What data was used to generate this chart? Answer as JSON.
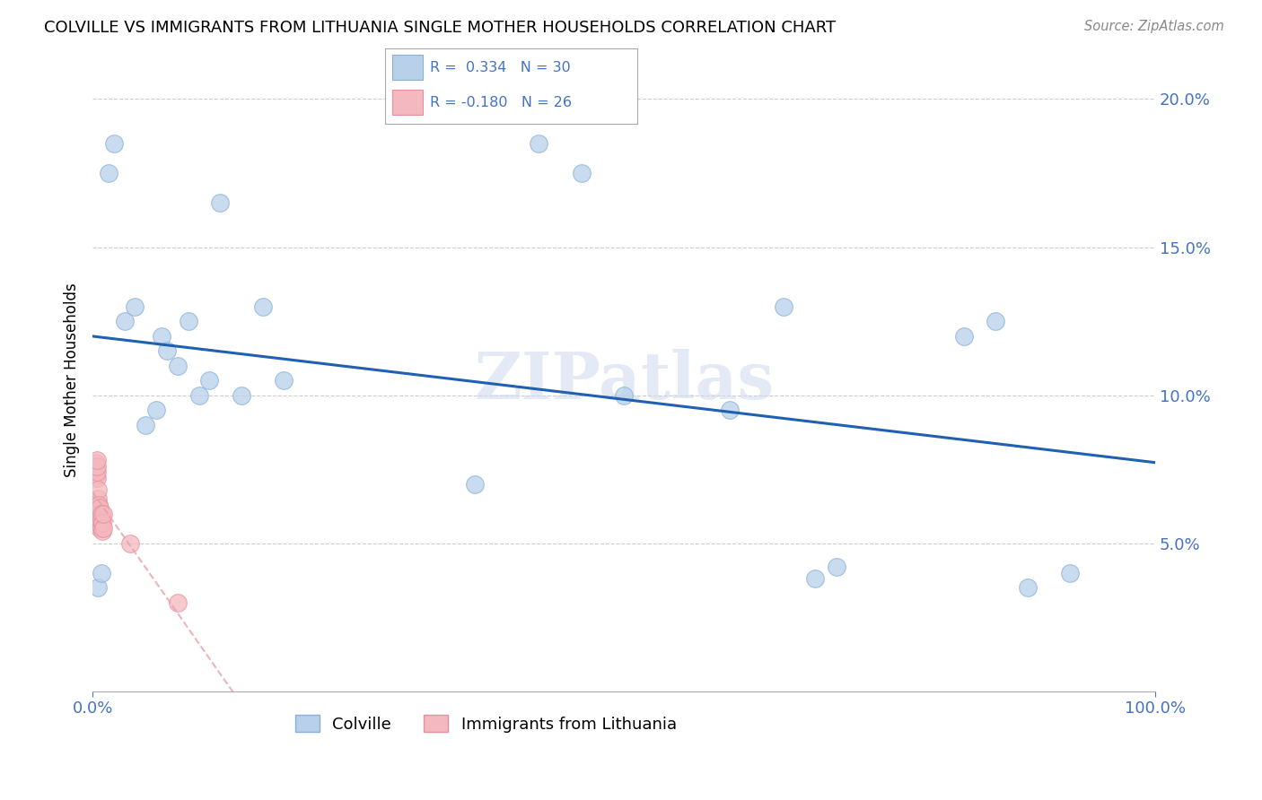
{
  "title": "COLVILLE VS IMMIGRANTS FROM LITHUANIA SINGLE MOTHER HOUSEHOLDS CORRELATION CHART",
  "source": "Source: ZipAtlas.com",
  "tick_color": "#4472c4",
  "ylabel": "Single Mother Households",
  "xlim": [
    0,
    1.0
  ],
  "ylim": [
    0,
    0.21
  ],
  "y_ticks": [
    0.0,
    0.05,
    0.1,
    0.15,
    0.2
  ],
  "y_tick_labels": [
    "",
    "5.0%",
    "10.0%",
    "15.0%",
    "20.0%"
  ],
  "colville_color": "#b8d0ea",
  "colville_edge": "#88afd8",
  "lithuania_color": "#f4b8c0",
  "lithuania_edge": "#e8909a",
  "line_blue": "#2060b0",
  "line_pink": "#e8a0aa",
  "colville_points_x": [
    0.005,
    0.008,
    0.015,
    0.02,
    0.03,
    0.04,
    0.05,
    0.06,
    0.065,
    0.07,
    0.08,
    0.09,
    0.1,
    0.11,
    0.12,
    0.14,
    0.16,
    0.18,
    0.36,
    0.42,
    0.46,
    0.5,
    0.6,
    0.65,
    0.68,
    0.7,
    0.82,
    0.85,
    0.88,
    0.92
  ],
  "colville_points_y": [
    0.035,
    0.04,
    0.175,
    0.185,
    0.125,
    0.13,
    0.09,
    0.095,
    0.12,
    0.115,
    0.11,
    0.125,
    0.1,
    0.105,
    0.165,
    0.1,
    0.13,
    0.105,
    0.07,
    0.185,
    0.175,
    0.1,
    0.095,
    0.13,
    0.038,
    0.042,
    0.12,
    0.125,
    0.035,
    0.04
  ],
  "lithuania_points_x": [
    0.003,
    0.003,
    0.003,
    0.004,
    0.004,
    0.004,
    0.004,
    0.005,
    0.005,
    0.005,
    0.005,
    0.006,
    0.006,
    0.006,
    0.007,
    0.007,
    0.007,
    0.008,
    0.008,
    0.008,
    0.009,
    0.009,
    0.01,
    0.01,
    0.035,
    0.08
  ],
  "lithuania_points_y": [
    0.073,
    0.075,
    0.077,
    0.072,
    0.074,
    0.076,
    0.078,
    0.06,
    0.062,
    0.065,
    0.068,
    0.058,
    0.06,
    0.063,
    0.055,
    0.058,
    0.062,
    0.055,
    0.058,
    0.06,
    0.054,
    0.057,
    0.055,
    0.06,
    0.05,
    0.03
  ],
  "background_color": "#ffffff",
  "grid_color": "#cccccc",
  "figsize": [
    14.06,
    8.92
  ],
  "dpi": 100
}
